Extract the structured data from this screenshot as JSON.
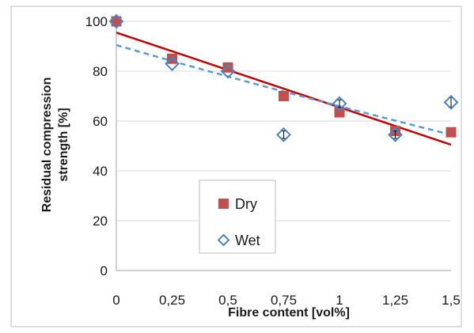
{
  "chart_data": {
    "type": "scatter",
    "title": "",
    "xlabel": "Fibre content [vol%]",
    "ylabel": "Residual compression strength [%]",
    "ylabel_lines": [
      "Residual compression",
      "strength [%]"
    ],
    "xlim": [
      0,
      1.5
    ],
    "ylim": [
      0,
      100
    ],
    "x_ticks": [
      0,
      0.25,
      0.5,
      0.75,
      1,
      1.25,
      1.5
    ],
    "x_tick_labels": [
      "0",
      "0,25",
      "0,5",
      "0,75",
      "1",
      "1,25",
      "1,5"
    ],
    "y_ticks": [
      0,
      20,
      40,
      60,
      80,
      100
    ],
    "y_tick_labels": [
      "0",
      "20",
      "40",
      "60",
      "80",
      "100"
    ],
    "grid": "horizontal",
    "legend_position": "lower-center",
    "series": [
      {
        "name": "Dry",
        "marker": "square",
        "color": "#c0504d",
        "x": [
          0,
          0.25,
          0.5,
          0.75,
          1,
          1.25,
          1.5
        ],
        "y": [
          100,
          85,
          81.5,
          70,
          63.5,
          56,
          55.5
        ],
        "trend": {
          "type": "linear",
          "color": "#c00000",
          "style": "solid",
          "y_at_0": 95.5,
          "y_at_1.5": 50.5
        }
      },
      {
        "name": "Wet",
        "marker": "diamond-open",
        "color": "#4f81bd",
        "x": [
          0,
          0.25,
          0.5,
          0.75,
          1,
          1.25,
          1.5
        ],
        "y": [
          100,
          83,
          80,
          54.5,
          67,
          54.5,
          67.5
        ],
        "error": [
          0,
          0,
          0,
          1.5,
          1.5,
          1.5,
          2
        ],
        "trend": {
          "type": "curve",
          "color": "#5b9bd5",
          "style": "dashed",
          "y_at_0": 90.5,
          "y_at_1.5": 54.5
        }
      }
    ]
  }
}
